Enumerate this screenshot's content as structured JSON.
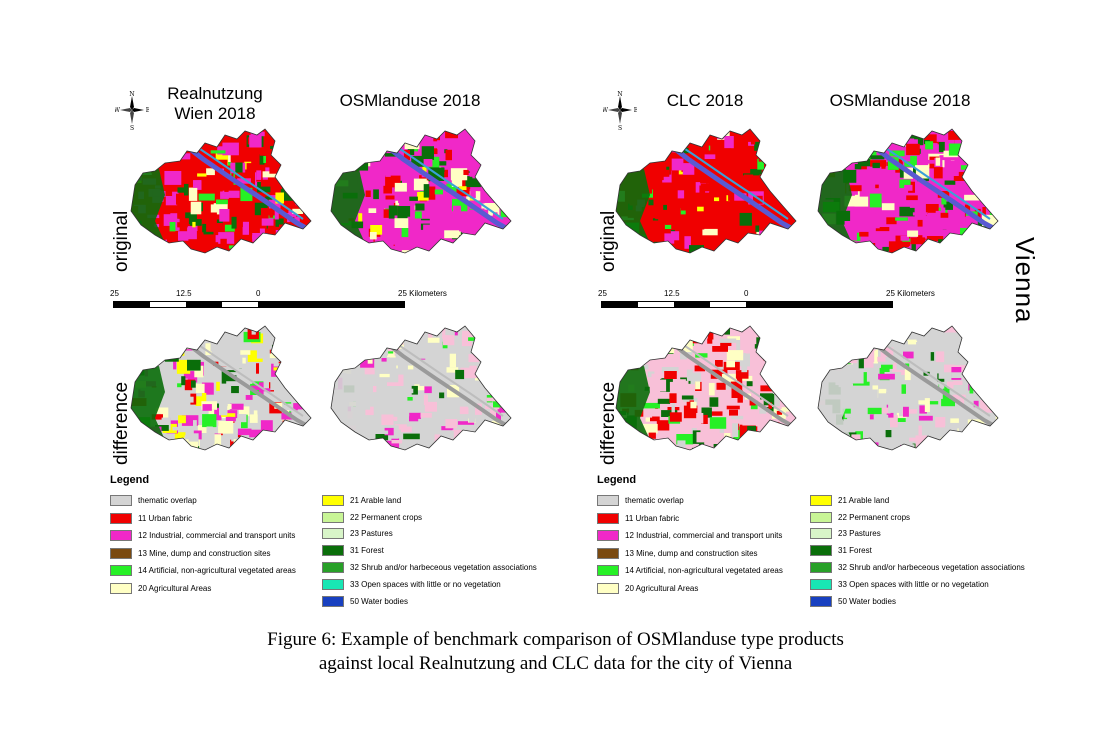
{
  "panels": [
    {
      "id": "vienna-realnutzung",
      "title_left": "Realnutzung\nWien 2018",
      "title_right": "OSMlanduse 2018",
      "row_original": "original",
      "row_difference": "difference",
      "compass": {
        "n": "N",
        "s": "S",
        "e": "E",
        "w": "W"
      },
      "scale": {
        "labels": [
          "25",
          "12.5",
          "0",
          "25 Kilometers"
        ]
      }
    },
    {
      "id": "vienna-clc",
      "title_left": "CLC 2018",
      "title_right": "OSMlanduse 2018",
      "row_original": "original",
      "row_difference": "difference",
      "compass": {
        "n": "N",
        "s": "S",
        "e": "E",
        "w": "W"
      },
      "scale": {
        "labels": [
          "25",
          "12.5",
          "0",
          "25 Kilometers"
        ]
      }
    }
  ],
  "city_label": "Vienna",
  "legend": {
    "title": "Legend",
    "left": [
      {
        "label": "thematic overlap",
        "color": "#d4d4d4"
      },
      {
        "label": "11 Urban fabric",
        "color": "#f00000"
      },
      {
        "label": "12 Industrial, commercial and transport units",
        "color": "#f028c8"
      },
      {
        "label": "13 Mine, dump and construction sites",
        "color": "#7a4a10"
      },
      {
        "label": "14 Artificial, non-agricultural vegetated areas",
        "color": "#26f026"
      },
      {
        "label": "20 Agricultural Areas",
        "color": "#ffffc4"
      }
    ],
    "right": [
      {
        "label": "21 Arable land",
        "color": "#ffff00"
      },
      {
        "label": "22 Permanent crops",
        "color": "#c8f596"
      },
      {
        "label": "23 Pastures",
        "color": "#d8f5c8"
      },
      {
        "label": "31 Forest",
        "color": "#0a6e0a"
      },
      {
        "label": "32 Shrub and/or harbeceous vegetation associations",
        "color": "#28a028"
      },
      {
        "label": "33 Open spaces with little or no vegetation",
        "color": "#18e6b4"
      },
      {
        "label": "50 Water bodies",
        "color": "#1840c0"
      }
    ]
  },
  "caption": {
    "line1": "Figure 6: Example of benchmark comparison of OSMlanduse type products",
    "line2": "against local Realnutzung and CLC data for the city of Vienna"
  },
  "map_colors": {
    "urban": "#f00000",
    "industrial": "#f028c8",
    "agri": "#ffffc4",
    "arable": "#ffff00",
    "forest": "#0a6e0a",
    "shrub": "#28a028",
    "water": "#5a5ad2",
    "overlap": "#d4d4d4",
    "green": "#26f026",
    "pink": "#f8c0d8"
  }
}
